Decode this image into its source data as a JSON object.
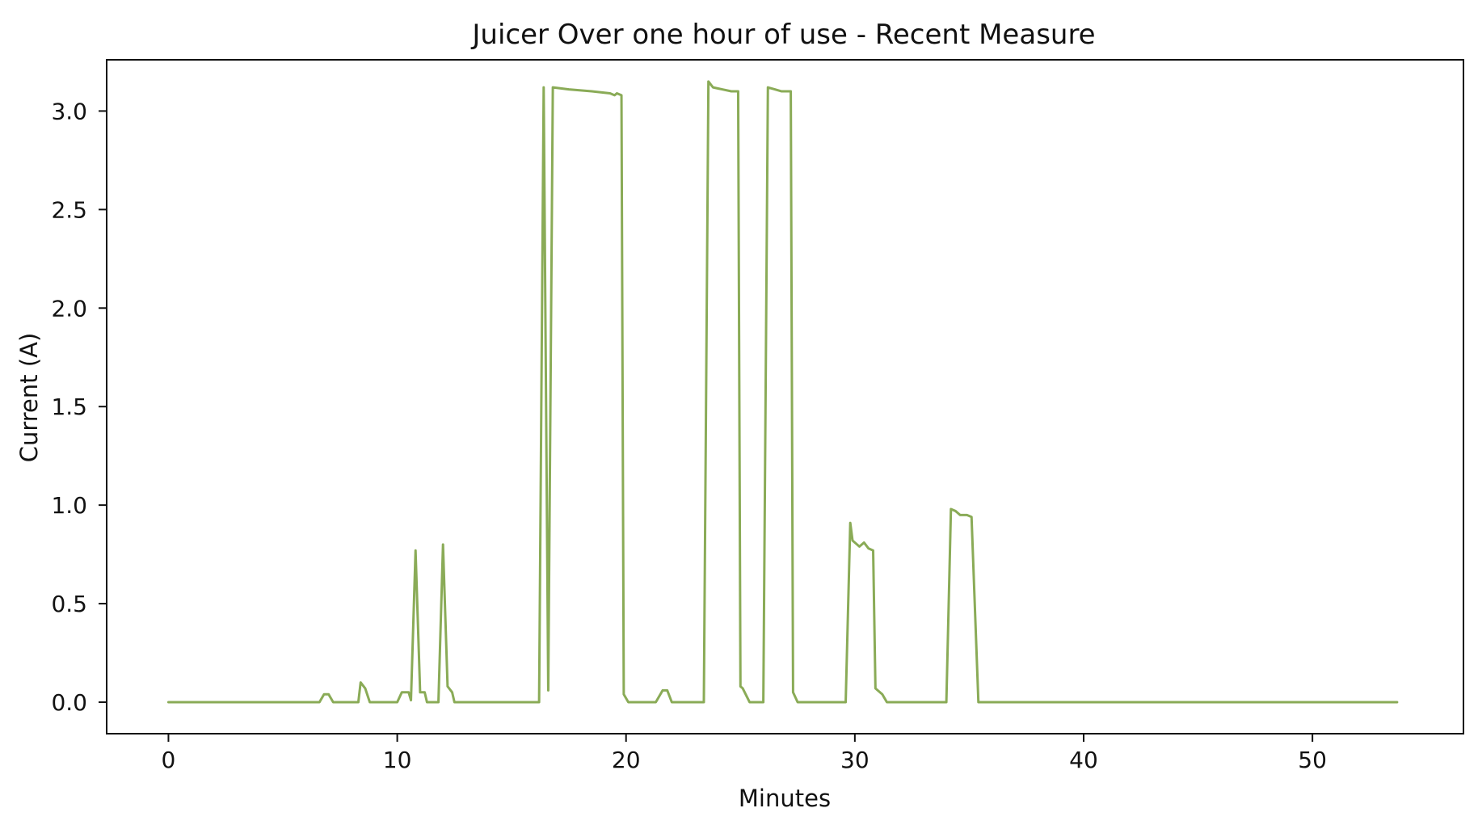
{
  "chart_data": {
    "type": "line",
    "title": "Juicer Over one hour of use - Recent Measure",
    "xlabel": "Minutes",
    "ylabel": "Current (A)",
    "xlim": [
      -2.7,
      56.6
    ],
    "ylim": [
      -0.16,
      3.26
    ],
    "xticks": [
      0,
      10,
      20,
      30,
      40,
      50
    ],
    "xtick_labels": [
      "0",
      "10",
      "20",
      "30",
      "40",
      "50"
    ],
    "yticks": [
      0.0,
      0.5,
      1.0,
      1.5,
      2.0,
      2.5,
      3.0
    ],
    "ytick_labels": [
      "0.0",
      "0.5",
      "1.0",
      "1.5",
      "2.0",
      "2.5",
      "3.0"
    ],
    "grid": false,
    "legend": "none",
    "line_color": "#8aab57",
    "series": [
      {
        "points": [
          [
            0,
            0
          ],
          [
            6.6,
            0
          ],
          [
            6.8,
            0.04
          ],
          [
            7.0,
            0.04
          ],
          [
            7.2,
            0
          ],
          [
            8.3,
            0
          ],
          [
            8.4,
            0.1
          ],
          [
            8.6,
            0.07
          ],
          [
            8.8,
            0
          ],
          [
            10.0,
            0
          ],
          [
            10.2,
            0.05
          ],
          [
            10.5,
            0.05
          ],
          [
            10.6,
            0.01
          ],
          [
            10.8,
            0.77
          ],
          [
            11.0,
            0.05
          ],
          [
            11.2,
            0.05
          ],
          [
            11.3,
            0
          ],
          [
            11.8,
            0
          ],
          [
            12.0,
            0.8
          ],
          [
            12.2,
            0.08
          ],
          [
            12.4,
            0.05
          ],
          [
            12.5,
            0
          ],
          [
            16.2,
            0
          ],
          [
            16.4,
            3.12
          ],
          [
            16.6,
            0.06
          ],
          [
            16.8,
            3.12
          ],
          [
            17.5,
            3.11
          ],
          [
            18.5,
            3.1
          ],
          [
            19.3,
            3.09
          ],
          [
            19.5,
            3.08
          ],
          [
            19.6,
            3.09
          ],
          [
            19.8,
            3.08
          ],
          [
            19.9,
            0.04
          ],
          [
            20.1,
            0
          ],
          [
            21.3,
            0
          ],
          [
            21.6,
            0.06
          ],
          [
            21.8,
            0.06
          ],
          [
            22.0,
            0
          ],
          [
            23.4,
            0
          ],
          [
            23.6,
            3.15
          ],
          [
            23.8,
            3.12
          ],
          [
            24.2,
            3.11
          ],
          [
            24.6,
            3.1
          ],
          [
            24.9,
            3.1
          ],
          [
            25.0,
            0.08
          ],
          [
            25.1,
            0.07
          ],
          [
            25.4,
            0
          ],
          [
            26.0,
            0
          ],
          [
            26.2,
            3.12
          ],
          [
            26.5,
            3.11
          ],
          [
            26.8,
            3.1
          ],
          [
            27.2,
            3.1
          ],
          [
            27.3,
            0.05
          ],
          [
            27.5,
            0
          ],
          [
            29.6,
            0
          ],
          [
            29.8,
            0.91
          ],
          [
            29.9,
            0.82
          ],
          [
            30.2,
            0.79
          ],
          [
            30.4,
            0.81
          ],
          [
            30.6,
            0.78
          ],
          [
            30.8,
            0.77
          ],
          [
            30.9,
            0.07
          ],
          [
            31.0,
            0.06
          ],
          [
            31.2,
            0.04
          ],
          [
            31.4,
            0
          ],
          [
            34.0,
            0
          ],
          [
            34.2,
            0.98
          ],
          [
            34.4,
            0.97
          ],
          [
            34.6,
            0.95
          ],
          [
            34.9,
            0.95
          ],
          [
            35.1,
            0.94
          ],
          [
            35.4,
            0
          ],
          [
            53.7,
            0
          ]
        ]
      }
    ]
  }
}
